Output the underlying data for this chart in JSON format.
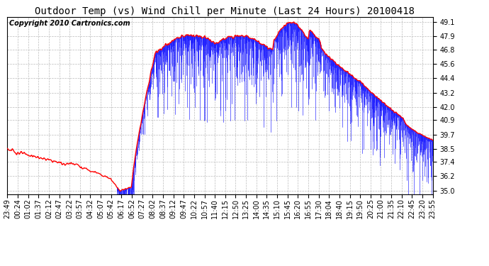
{
  "title": "Outdoor Temp (vs) Wind Chill per Minute (Last 24 Hours) 20100418",
  "copyright": "Copyright 2010 Cartronics.com",
  "background_color": "#ffffff",
  "plot_bg_color": "#ffffff",
  "grid_color": "#bbbbbb",
  "red_line_color": "#ff0000",
  "blue_line_color": "#0000ff",
  "y_ticks": [
    35.0,
    36.2,
    37.4,
    38.5,
    39.7,
    40.9,
    42.0,
    43.2,
    44.4,
    45.6,
    46.8,
    47.9,
    49.1
  ],
  "ylim": [
    34.7,
    49.5
  ],
  "x_labels": [
    "23:49",
    "00:24",
    "01:02",
    "01:37",
    "02:12",
    "02:47",
    "03:22",
    "03:57",
    "04:32",
    "05:07",
    "05:42",
    "06:17",
    "06:52",
    "07:27",
    "08:02",
    "08:37",
    "09:12",
    "09:47",
    "10:22",
    "10:57",
    "11:40",
    "12:15",
    "12:50",
    "13:25",
    "14:00",
    "14:35",
    "15:10",
    "15:45",
    "16:20",
    "16:55",
    "17:30",
    "18:04",
    "18:40",
    "19:15",
    "19:50",
    "20:25",
    "21:00",
    "21:35",
    "22:10",
    "22:45",
    "23:20",
    "23:55"
  ],
  "title_fontsize": 10,
  "copyright_fontsize": 7,
  "tick_fontsize": 7
}
